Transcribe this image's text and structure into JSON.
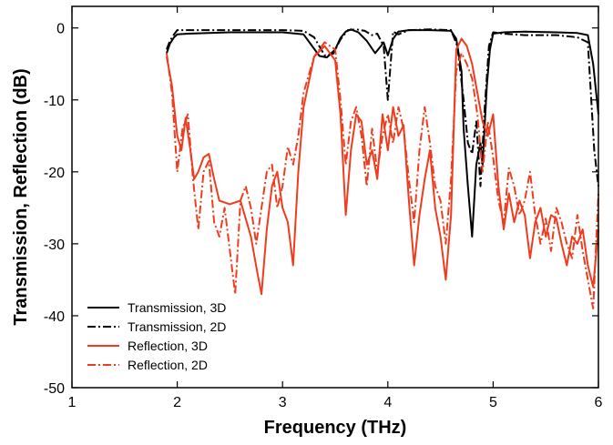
{
  "chart_data": {
    "type": "line",
    "title": "",
    "xlabel": "Frequency (THz)",
    "ylabel": "Transmission, Reflection (dB)",
    "xlim": [
      1,
      6
    ],
    "ylim": [
      -50,
      3
    ],
    "x_ticks": [
      1,
      2,
      3,
      4,
      5,
      6
    ],
    "y_ticks": [
      0,
      -10,
      -20,
      -30,
      -40,
      -50
    ],
    "grid": false,
    "legend_position": "bottom-left",
    "series": [
      {
        "name": "Transmission, 3D",
        "color": "#000000",
        "dash": "solid",
        "x": [
          1.9,
          1.93,
          1.97,
          2.0,
          2.1,
          2.5,
          3.0,
          3.2,
          3.28,
          3.35,
          3.42,
          3.5,
          3.55,
          3.6,
          3.65,
          3.72,
          3.8,
          3.88,
          3.93,
          3.96,
          4.0,
          4.05,
          4.1,
          4.2,
          4.4,
          4.6,
          4.65,
          4.7,
          4.72,
          4.76,
          4.8,
          4.84,
          4.88,
          4.9,
          4.94,
          4.97,
          5.0,
          5.1,
          5.3,
          5.6,
          5.8,
          5.9,
          5.95,
          6.0
        ],
        "y": [
          -3.5,
          -2.2,
          -1.3,
          -0.9,
          -0.8,
          -0.6,
          -0.6,
          -0.9,
          -2.5,
          -3.9,
          -4.1,
          -3.0,
          -1.4,
          -0.5,
          -0.2,
          -0.6,
          -1.8,
          -3.5,
          -2.6,
          -2.0,
          -3.8,
          -1.5,
          -0.5,
          -0.3,
          -0.3,
          -0.4,
          -1.5,
          -6.0,
          -14.0,
          -22.0,
          -29.0,
          -19.0,
          -16.0,
          -19.0,
          -8.0,
          -3.0,
          -0.8,
          -0.6,
          -0.5,
          -0.6,
          -0.7,
          -1.0,
          -5.0,
          -12.0
        ]
      },
      {
        "name": "Transmission, 2D",
        "color": "#000000",
        "dash": "dashdot",
        "x": [
          1.9,
          1.93,
          1.97,
          2.0,
          2.2,
          2.6,
          3.0,
          3.2,
          3.3,
          3.4,
          3.48,
          3.55,
          3.62,
          3.7,
          3.78,
          3.85,
          3.9,
          3.96,
          4.0,
          4.05,
          4.1,
          4.2,
          4.4,
          4.6,
          4.66,
          4.72,
          4.76,
          4.8,
          4.84,
          4.88,
          4.92,
          4.96,
          5.0,
          5.1,
          5.3,
          5.6,
          5.8,
          5.9,
          5.96,
          6.0
        ],
        "y": [
          -3.0,
          -1.8,
          -0.9,
          -0.3,
          -0.3,
          -0.3,
          -0.3,
          -0.4,
          -1.3,
          -3.8,
          -3.6,
          -1.6,
          -0.3,
          -0.2,
          -0.4,
          -1.0,
          -0.8,
          -2.5,
          -10.0,
          -0.5,
          -0.9,
          -0.3,
          -0.2,
          -0.3,
          -2.5,
          -10.0,
          -16.0,
          -17.5,
          -13.0,
          -22.0,
          -11.0,
          -2.5,
          -0.6,
          -0.8,
          -1.0,
          -1.0,
          -1.3,
          -2.0,
          -17.0,
          -22.0
        ]
      },
      {
        "name": "Reflection, 3D",
        "color": "#f03c1e",
        "dash": "solid",
        "x": [
          1.9,
          1.95,
          2.0,
          2.04,
          2.08,
          2.12,
          2.16,
          2.2,
          2.25,
          2.3,
          2.35,
          2.4,
          2.5,
          2.6,
          2.7,
          2.76,
          2.8,
          2.85,
          2.9,
          2.95,
          3.0,
          3.05,
          3.1,
          3.15,
          3.2,
          3.3,
          3.4,
          3.5,
          3.55,
          3.6,
          3.65,
          3.7,
          3.75,
          3.8,
          3.85,
          3.9,
          3.95,
          4.0,
          4.05,
          4.1,
          4.15,
          4.2,
          4.25,
          4.3,
          4.35,
          4.4,
          4.45,
          4.5,
          4.55,
          4.6,
          4.65,
          4.7,
          4.75,
          4.8,
          4.85,
          4.9,
          4.95,
          5.0,
          5.05,
          5.1,
          5.15,
          5.2,
          5.25,
          5.3,
          5.35,
          5.4,
          5.45,
          5.5,
          5.55,
          5.6,
          5.65,
          5.7,
          5.75,
          5.8,
          5.85,
          5.9,
          5.95,
          6.0
        ],
        "y": [
          -4.0,
          -8.0,
          -15.0,
          -17.0,
          -12.5,
          -16.5,
          -21.0,
          -20.0,
          -18.0,
          -17.5,
          -21.0,
          -24.0,
          -24.5,
          -24.0,
          -29.0,
          -34.0,
          -37.0,
          -28.0,
          -22.0,
          -20.0,
          -25.0,
          -27.0,
          -33.0,
          -20.0,
          -11.0,
          -4.0,
          -2.5,
          -4.5,
          -12.0,
          -26.0,
          -17.0,
          -12.0,
          -13.0,
          -19.0,
          -17.0,
          -21.0,
          -12.0,
          -17.0,
          -11.0,
          -15.0,
          -13.5,
          -24.0,
          -33.0,
          -26.0,
          -21.0,
          -17.0,
          -25.0,
          -29.0,
          -35.0,
          -26.0,
          -3.0,
          -1.5,
          -2.5,
          -5.0,
          -9.0,
          -13.0,
          -15.0,
          -12.0,
          -22.0,
          -28.0,
          -23.0,
          -27.0,
          -24.0,
          -26.0,
          -32.0,
          -27.0,
          -25.0,
          -29.0,
          -26.0,
          -26.5,
          -30.0,
          -33.0,
          -29.0,
          -30.0,
          -28.0,
          -33.0,
          -36.0,
          -28.0
        ]
      },
      {
        "name": "Reflection, 2D",
        "color": "#f03c1e",
        "dash": "dashdot",
        "x": [
          1.9,
          1.95,
          2.0,
          2.05,
          2.1,
          2.15,
          2.2,
          2.25,
          2.3,
          2.35,
          2.4,
          2.45,
          2.5,
          2.55,
          2.6,
          2.65,
          2.7,
          2.75,
          2.8,
          2.85,
          2.9,
          2.95,
          3.0,
          3.05,
          3.1,
          3.15,
          3.2,
          3.3,
          3.4,
          3.5,
          3.55,
          3.6,
          3.65,
          3.7,
          3.75,
          3.8,
          3.85,
          3.9,
          3.95,
          4.0,
          4.05,
          4.1,
          4.15,
          4.2,
          4.25,
          4.3,
          4.35,
          4.4,
          4.45,
          4.5,
          4.55,
          4.6,
          4.65,
          4.7,
          4.75,
          4.8,
          4.85,
          4.9,
          4.95,
          5.0,
          5.05,
          5.1,
          5.15,
          5.2,
          5.25,
          5.3,
          5.35,
          5.4,
          5.45,
          5.5,
          5.55,
          5.6,
          5.65,
          5.7,
          5.75,
          5.8,
          5.85,
          5.9,
          5.95,
          6.0
        ],
        "y": [
          -3.5,
          -9.0,
          -20.0,
          -14.0,
          -12.0,
          -21.0,
          -28.0,
          -20.0,
          -18.5,
          -27.0,
          -29.0,
          -25.0,
          -31.0,
          -37.0,
          -24.0,
          -22.0,
          -25.0,
          -30.0,
          -25.0,
          -20.0,
          -19.0,
          -25.0,
          -22.0,
          -16.5,
          -19.0,
          -15.0,
          -9.0,
          -4.0,
          -2.0,
          -3.0,
          -10.0,
          -19.0,
          -13.0,
          -11.0,
          -15.0,
          -22.0,
          -14.0,
          -20.0,
          -15.0,
          -12.0,
          -16.0,
          -11.0,
          -14.0,
          -21.0,
          -27.0,
          -17.0,
          -11.0,
          -16.0,
          -22.0,
          -24.0,
          -30.0,
          -21.0,
          -6.0,
          -3.5,
          -5.0,
          -7.0,
          -12.0,
          -20.0,
          -13.0,
          -18.0,
          -24.0,
          -27.0,
          -19.5,
          -22.0,
          -26.0,
          -24.0,
          -20.0,
          -26.0,
          -30.0,
          -26.5,
          -31.0,
          -25.0,
          -27.0,
          -30.0,
          -32.0,
          -26.0,
          -31.0,
          -35.0,
          -39.0,
          -23.0
        ]
      }
    ]
  }
}
